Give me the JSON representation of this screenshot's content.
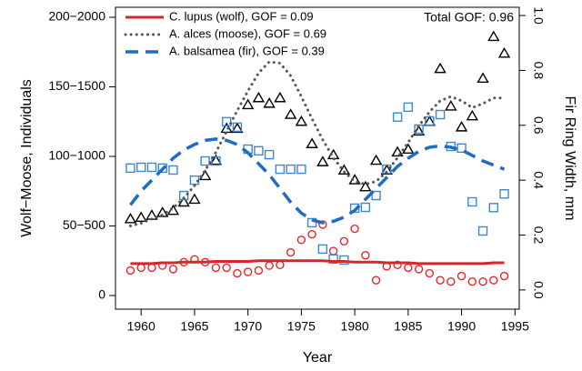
{
  "chart_data": {
    "type": "line",
    "xlabel": "Year",
    "ylabel": "Wolf−Moose, Individuals",
    "y2label": "Fir Ring Width, mm",
    "annotation": "Total GOF: 0.96",
    "x": [
      1959,
      1960,
      1961,
      1962,
      1963,
      1964,
      1965,
      1966,
      1967,
      1968,
      1969,
      1970,
      1971,
      1972,
      1973,
      1974,
      1975,
      1976,
      1977,
      1978,
      1979,
      1980,
      1981,
      1982,
      1983,
      1984,
      1985,
      1986,
      1987,
      1988,
      1989,
      1990,
      1991,
      1992,
      1993,
      1994
    ],
    "xlim": [
      1957.6,
      1995.4
    ],
    "xticks": [
      1960,
      1965,
      1970,
      1975,
      1980,
      1985,
      1990,
      1995
    ],
    "ylim": [
      -9.8,
      207.2
    ],
    "yticks": [
      0,
      {
        "value": 50,
        "label": "50−500"
      },
      {
        "value": 100,
        "label": "100−1000"
      },
      {
        "value": 150,
        "label": "150−1500"
      },
      {
        "value": 200,
        "label": "200−2000"
      }
    ],
    "y2lim": [
      -0.07,
      1.03
    ],
    "y2ticks": [
      {
        "value": 0,
        "label": "0.0"
      },
      0.2,
      0.4,
      0.6,
      0.8,
      {
        "value": 1,
        "label": "1.0"
      }
    ],
    "legend": "top-left",
    "series": [
      {
        "marker": "circle",
        "color": "#e8262a",
        "values": [
          18,
          20,
          20,
          21.5,
          19,
          24,
          26,
          24,
          20,
          20,
          16,
          17,
          18,
          21.5,
          22,
          31,
          40,
          44,
          51,
          32,
          39,
          48,
          29,
          11,
          21,
          22,
          20,
          19,
          16,
          11,
          10,
          14,
          10,
          10,
          11,
          14
        ]
      },
      {
        "marker": "triangle",
        "color": "#000000",
        "values": [
          55,
          56,
          57.5,
          59.5,
          61,
          67,
          69,
          86,
          97,
          120,
          120,
          137,
          142,
          138,
          142,
          130,
          125,
          109,
          96,
          101,
          90,
          83,
          78,
          97,
          90,
          103,
          105,
          118,
          125,
          163,
          136,
          121,
          129,
          156,
          186,
          174
        ]
      },
      {
        "marker": "square",
        "color": "#3b87d0",
        "axis": "y2",
        "values": [
          0.444,
          0.447,
          0.447,
          0.444,
          0.437,
          0.344,
          0.4,
          0.47,
          0.47,
          0.613,
          0.593,
          0.513,
          0.507,
          0.493,
          0.44,
          0.44,
          0.44,
          0.245,
          0.149,
          0.113,
          0.109,
          0.298,
          0.301,
          0.344,
          0.44,
          0.63,
          0.666,
          0.586,
          0.616,
          0.639,
          0.523,
          0.517,
          0.321,
          0.215,
          0.3,
          0.35
        ]
      },
      {
        "name": "C. lupus (wolf), GOF = 0.09",
        "line": "solid",
        "color": "#d7262b",
        "values": [
          23,
          23,
          23,
          23.5,
          23.5,
          24,
          24,
          24,
          24.5,
          24.5,
          24.5,
          24.5,
          25,
          25,
          25,
          25,
          25,
          25,
          25,
          24.5,
          24.5,
          24,
          24,
          24,
          23.5,
          23.5,
          23.5,
          23,
          23,
          23,
          23,
          23,
          23,
          23,
          23.5,
          23.5
        ]
      },
      {
        "name": "A. alces (moose), GOF = 0.69",
        "line": "dotted",
        "color": "#555555",
        "values": [
          50,
          52,
          55,
          58,
          63,
          70,
          79,
          90,
          103,
          118,
          133,
          147,
          160,
          168,
          167,
          158,
          143,
          127,
          112,
          99,
          89,
          82,
          80,
          82,
          89,
          99,
          110,
          122,
          132,
          140,
          143,
          140,
          135,
          138,
          142,
          142
        ]
      },
      {
        "name": "A. balsamea (fir), GOF = 0.39",
        "line": "dashed",
        "color": "#1f6cc4",
        "axis": "y2",
        "values": [
          0.31,
          0.36,
          0.4,
          0.44,
          0.48,
          0.51,
          0.53,
          0.545,
          0.55,
          0.545,
          0.53,
          0.5,
          0.46,
          0.42,
          0.37,
          0.32,
          0.28,
          0.255,
          0.245,
          0.25,
          0.265,
          0.29,
          0.33,
          0.37,
          0.41,
          0.45,
          0.48,
          0.505,
          0.52,
          0.525,
          0.52,
          0.51,
          0.49,
          0.47,
          0.455,
          0.44
        ]
      }
    ]
  }
}
